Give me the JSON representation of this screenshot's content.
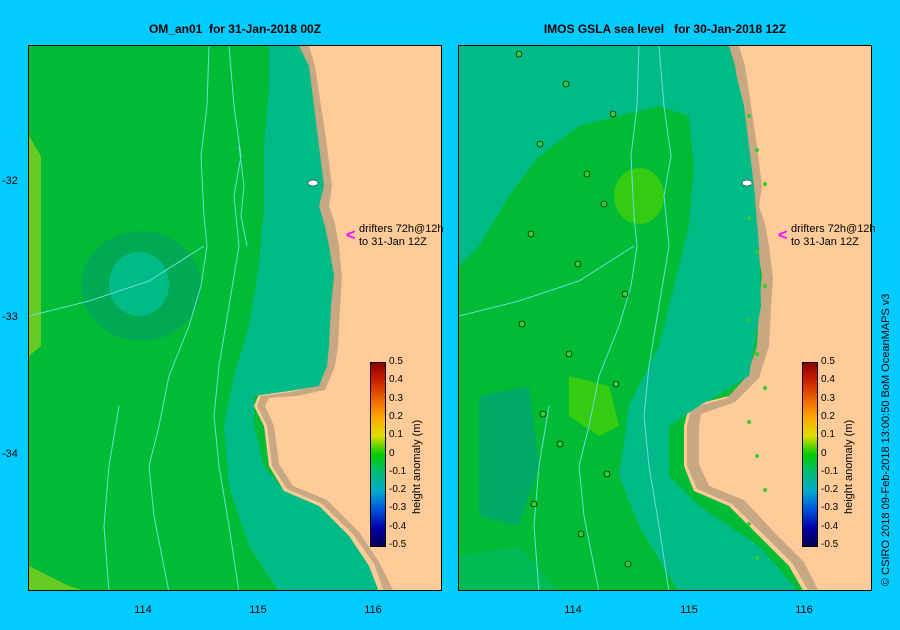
{
  "left_panel": {
    "title": "OM_an01  for 31-Jan-2018 00Z",
    "annotation_line1": "drifters 72h@12h",
    "annotation_line2": "to 31-Jan 12Z"
  },
  "right_panel": {
    "title": "IMOS GSLA sea level   for 30-Jan-2018 12Z",
    "annotation_line1": "drifters 72h@12h",
    "annotation_line2": "to 31-Jan 12Z"
  },
  "y_ticks": [
    "-32",
    "-33",
    "-34"
  ],
  "x_ticks": [
    "114",
    "115",
    "116"
  ],
  "colorbar": {
    "label": "height anomaly (m)",
    "ticks": [
      "0.5",
      "0.4",
      "0.3",
      "0.2",
      "0.1",
      "0",
      "-0.1",
      "-0.2",
      "-0.3",
      "-0.4",
      "-0.5"
    ],
    "colors": [
      "#880000",
      "#cc2200",
      "#ee6600",
      "#ffaa00",
      "#dddd00",
      "#00cc00",
      "#00bb77",
      "#00aacc",
      "#0055dd",
      "#0000aa",
      "#000055"
    ]
  },
  "credit": "© CSIRO 2018   09-Feb-2018 13:00:50 BoM OceanMAPS v3",
  "colors": {
    "land": "#ffcc99",
    "coast": "#c8a882",
    "frame": "#00ccff"
  }
}
